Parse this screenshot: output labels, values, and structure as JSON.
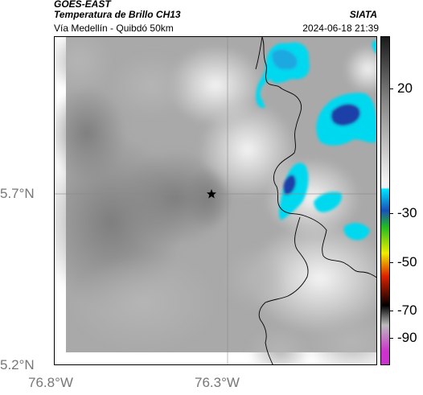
{
  "header": {
    "source": "GOES-EAST",
    "product": "Temperatura de Brillo CH13",
    "region": "Vía Medellín - Quibdó 50km",
    "organization": "SIATA",
    "datetime": "2024-06-18 21:39"
  },
  "axes": {
    "latitude_labels": [
      "5.7°N",
      "5.2°N"
    ],
    "longitude_labels": [
      "76.8°W",
      "76.3°W"
    ]
  },
  "colorbar": {
    "tick_labels": [
      "20",
      "-30",
      "-50",
      "-70",
      "-90"
    ],
    "colors": {
      "warm_top": "#1a1a1a",
      "warm_mid": "#888888",
      "warm_low": "#f2f2f2",
      "cyan": "#00e5ff",
      "blue": "#1a50b8",
      "green": "#22bb22",
      "yellow": "#eeee00",
      "red": "#dd2200",
      "black": "#000000",
      "magenta": "#cc33cc"
    }
  },
  "map": {
    "marker": "star-marker",
    "cloud_color_cold": "#00d8f0",
    "cloud_color_core": "#1b3fa8",
    "ground_gray": "#a8a8a8"
  }
}
